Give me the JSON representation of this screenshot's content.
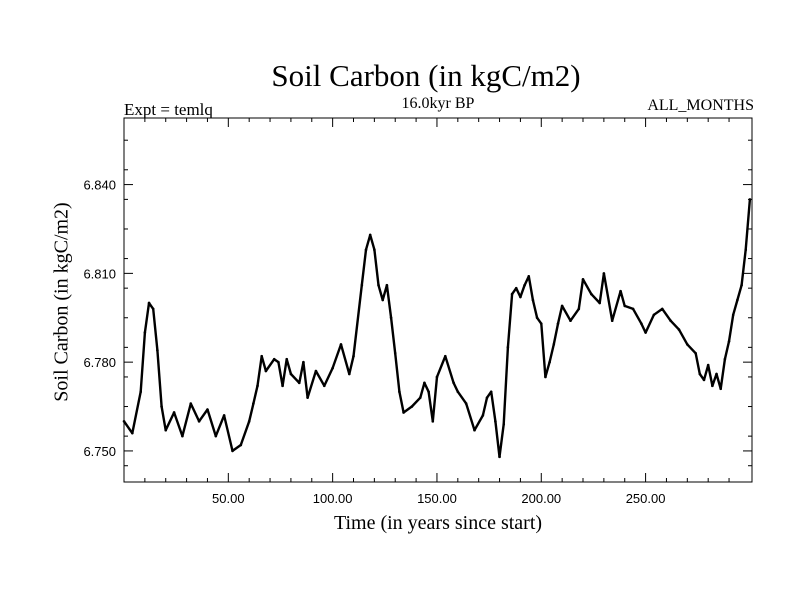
{
  "chart_data": {
    "type": "line",
    "title": "Soil Carbon (in kgC/m2)",
    "subtitle": "16.0kyr BP",
    "left_header": "Expt = temlq",
    "right_header": "ALL_MONTHS",
    "xlabel": "Time (in years since start)",
    "ylabel": "Soil Carbon (in kgC/m2)",
    "xlim": [
      0,
      301
    ],
    "ylim": [
      6.7395,
      6.8625
    ],
    "x_ticks": [
      50,
      100,
      150,
      200,
      250
    ],
    "x_tick_labels": [
      "50.00",
      "100.00",
      "150.00",
      "200.00",
      "250.00"
    ],
    "y_ticks": [
      6.75,
      6.78,
      6.81,
      6.84
    ],
    "y_tick_labels": [
      "6.750",
      "6.780",
      "6.810",
      "6.840"
    ],
    "grid": false,
    "series": [
      {
        "color": "#000000",
        "x": [
          0,
          4,
          8,
          10,
          12,
          14,
          16,
          18,
          20,
          24,
          28,
          32,
          36,
          40,
          44,
          48,
          52,
          56,
          60,
          62,
          64,
          66,
          68,
          72,
          74,
          76,
          78,
          80,
          84,
          86,
          88,
          92,
          96,
          100,
          104,
          108,
          110,
          114,
          116,
          118,
          120,
          122,
          124,
          126,
          128,
          130,
          132,
          134,
          138,
          142,
          144,
          146,
          148,
          150,
          154,
          158,
          160,
          164,
          168,
          172,
          174,
          176,
          178,
          180,
          182,
          184,
          186,
          188,
          190,
          192,
          194,
          196,
          198,
          200,
          202,
          204,
          206,
          208,
          210,
          214,
          218,
          220,
          224,
          228,
          230,
          234,
          238,
          240,
          244,
          248,
          250,
          254,
          258,
          262,
          266,
          270,
          274,
          276,
          278,
          280,
          282,
          284,
          286,
          288,
          290,
          292,
          294,
          296,
          298,
          300
        ],
        "y": [
          6.76,
          6.756,
          6.77,
          6.79,
          6.8,
          6.798,
          6.784,
          6.765,
          6.757,
          6.763,
          6.755,
          6.766,
          6.76,
          6.764,
          6.755,
          6.762,
          6.75,
          6.752,
          6.76,
          6.766,
          6.772,
          6.782,
          6.777,
          6.781,
          6.78,
          6.772,
          6.781,
          6.776,
          6.773,
          6.78,
          6.768,
          6.777,
          6.772,
          6.778,
          6.786,
          6.776,
          6.782,
          6.806,
          6.818,
          6.823,
          6.818,
          6.806,
          6.801,
          6.806,
          6.795,
          6.783,
          6.77,
          6.763,
          6.765,
          6.768,
          6.773,
          6.77,
          6.76,
          6.775,
          6.782,
          6.773,
          6.77,
          6.766,
          6.757,
          6.762,
          6.768,
          6.77,
          6.76,
          6.748,
          6.759,
          6.785,
          6.803,
          6.805,
          6.802,
          6.806,
          6.809,
          6.801,
          6.795,
          6.793,
          6.775,
          6.78,
          6.786,
          6.793,
          6.799,
          6.794,
          6.798,
          6.808,
          6.803,
          6.8,
          6.81,
          6.794,
          6.804,
          6.799,
          6.798,
          6.793,
          6.79,
          6.796,
          6.798,
          6.794,
          6.791,
          6.786,
          6.783,
          6.776,
          6.774,
          6.779,
          6.772,
          6.776,
          6.771,
          6.781,
          6.787,
          6.796,
          6.801,
          6.806,
          6.818,
          6.835
        ]
      }
    ]
  }
}
